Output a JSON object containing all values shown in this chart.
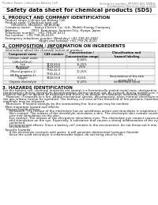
{
  "header_left": "Product Name: Lithium Ion Battery Cell",
  "header_right_line1": "Substance number: SR5900-854.00MHz",
  "header_right_line2": "Established / Revision: Dec.1,2010",
  "title": "Safety data sheet for chemical products (SDS)",
  "section1_title": "1. PRODUCT AND COMPANY IDENTIFICATION",
  "section1_items": [
    "· Product name: Lithium Ion Battery Cell",
    "· Product code: Cylindrical-type cell",
    "        (SR18500, SR18650, SR-B500A)",
    "· Company name:    Sanyo Electric Co., Ltd., Mobile Energy Company",
    "· Address:             2001  Kamimura, Sumoto-City, Hyogo, Japan",
    "· Telephone number:   +81-799-26-4111",
    "· Fax number:  +81-799-26-4125",
    "· Emergency telephone number (Weekday) +81-799-26-2942",
    "                                    (Night and holiday) +81-799-26-4101"
  ],
  "section2_title": "2. COMPOSITION / INFORMATION ON INGREDIENTS",
  "section2_intro": "· Substance or preparation: Preparation",
  "section2_sub": "· Information about the chemical nature of product:",
  "table_col_headers": [
    "Component name",
    "CAS number",
    "Concentration /\nConcentration range",
    "Classification and\nhazard labeling"
  ],
  "table_rows": [
    [
      "Lithium cobalt oxide\n(LiMnCoO2(x))",
      "-",
      "30-60%",
      "-"
    ],
    [
      "Iron",
      "7439-89-6",
      "15-25%",
      "-"
    ],
    [
      "Aluminum",
      "7429-90-5",
      "2-5%",
      "-"
    ],
    [
      "Graphite\n(Mixed graphite-1)\n(M-Mg graphite-1)",
      "7782-42-5\n7782-44-2",
      "10-25%",
      "-"
    ],
    [
      "Copper",
      "7440-50-8",
      "5-15%",
      "Sensitization of the skin\ngroup R43.2"
    ],
    [
      "Organic electrolyte",
      "-",
      "10-20%",
      "Inflammable liquid"
    ]
  ],
  "table_row_heights": [
    7.5,
    3.5,
    3.5,
    8.5,
    7.0,
    3.5
  ],
  "section3_title": "3. HAZARDS IDENTIFICATION",
  "section3_lines": [
    "For the battery cell, chemical materials are stored in a hermetically sealed metal case, designed to withstand",
    "temperatures during electrolyte-decomposition during normal use. As a result, during normal-use, there is no",
    "physical danger of ignition or explosion and there is no danger of hazardous materials leakage.",
    "   However, if exposed to a fire, added mechanical shocks, decomposed, when internal electrolyte may cause",
    "the gas release cannot be operated. The battery cell case will be breached of fire-portions, hazardous",
    "materials may be released.",
    "   Moreover, if heated strongly by the surrounding fire, burst gas may be emitted.",
    "",
    "· Most important hazard and effects:",
    "   Human health effects:",
    "      Inhalation: The release of the electrolyte has an anesthesia action and stimulates is respiratory tract.",
    "      Skin contact: The release of the electrolyte stimulates a skin. The electrolyte skin contact causes a",
    "      sore and stimulation on the skin.",
    "      Eye contact: The release of the electrolyte stimulates eyes. The electrolyte eye contact causes a sore",
    "      and stimulation on the eye. Especially, a substance that causes a strong inflammation of the eyes is",
    "      contained.",
    "      Environmental effects: Since a battery cell remains in the environment, do not throw out it into the",
    "      environment.",
    "",
    "· Specific hazards:",
    "      If the electrolyte contacts with water, it will generate detrimental hydrogen fluoride.",
    "      Since the used electrolyte is inflammable liquid, do not bring close to fire."
  ],
  "bg_color": "#ffffff",
  "text_color": "#111111",
  "gray_text": "#777777",
  "line_color": "#aaaaaa",
  "table_header_bg": "#e0e0e0",
  "fs_header": 2.5,
  "fs_title": 5.0,
  "fs_section": 4.0,
  "fs_body": 2.8,
  "fs_table_hdr": 2.6,
  "fs_table_body": 2.5
}
